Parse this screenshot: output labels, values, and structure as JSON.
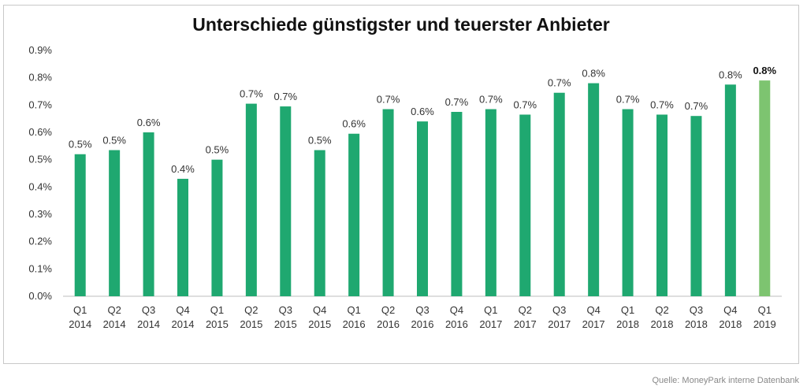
{
  "chart_data": {
    "type": "bar",
    "title": "Unterschiede günstigster und teuerster Anbieter",
    "xlabel": "",
    "ylabel": "",
    "ylim": [
      0,
      0.9
    ],
    "yticks": [
      "0.0%",
      "0.1%",
      "0.2%",
      "0.3%",
      "0.4%",
      "0.5%",
      "0.6%",
      "0.7%",
      "0.8%",
      "0.9%"
    ],
    "grid": false,
    "categories": [
      [
        "Q1",
        "2014"
      ],
      [
        "Q2",
        "2014"
      ],
      [
        "Q3",
        "2014"
      ],
      [
        "Q4",
        "2014"
      ],
      [
        "Q1",
        "2015"
      ],
      [
        "Q2",
        "2015"
      ],
      [
        "Q3",
        "2015"
      ],
      [
        "Q4",
        "2015"
      ],
      [
        "Q1",
        "2016"
      ],
      [
        "Q2",
        "2016"
      ],
      [
        "Q3",
        "2016"
      ],
      [
        "Q4",
        "2016"
      ],
      [
        "Q1",
        "2017"
      ],
      [
        "Q2",
        "2017"
      ],
      [
        "Q3",
        "2017"
      ],
      [
        "Q4",
        "2017"
      ],
      [
        "Q1",
        "2018"
      ],
      [
        "Q2",
        "2018"
      ],
      [
        "Q3",
        "2018"
      ],
      [
        "Q4",
        "2018"
      ],
      [
        "Q1",
        "2019"
      ]
    ],
    "values": [
      0.52,
      0.535,
      0.6,
      0.43,
      0.5,
      0.705,
      0.695,
      0.535,
      0.595,
      0.685,
      0.64,
      0.675,
      0.685,
      0.665,
      0.745,
      0.78,
      0.685,
      0.665,
      0.66,
      0.775,
      0.79
    ],
    "labels": [
      "0.5%",
      "0.5%",
      "0.6%",
      "0.4%",
      "0.5%",
      "0.7%",
      "0.7%",
      "0.5%",
      "0.6%",
      "0.7%",
      "0.6%",
      "0.7%",
      "0.7%",
      "0.7%",
      "0.7%",
      "0.8%",
      "0.7%",
      "0.7%",
      "0.7%",
      "0.8%",
      "0.8%"
    ],
    "highlight_index": 20,
    "colors": {
      "bar": "#1fa870",
      "highlight": "#7dc470"
    }
  },
  "source": "Quelle: MoneyPark interne Datenbank"
}
